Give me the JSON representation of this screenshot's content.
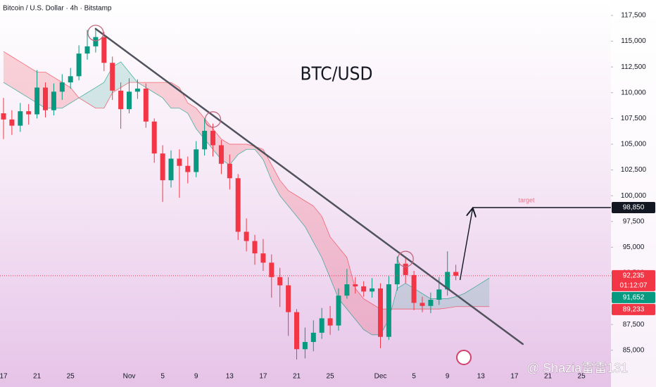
{
  "chart_data": {
    "type": "candlestick",
    "title": "Bitcoin / U.S. Dollar · 4h · Bitstamp",
    "annotation": "BTC/USD",
    "watermark": "@ Shazia雷雷131",
    "categories": [
      "17",
      null,
      null,
      null,
      "21",
      null,
      null,
      null,
      "25",
      null,
      null,
      null,
      null,
      null,
      null,
      "Nov",
      null,
      null,
      null,
      "5",
      null,
      null,
      null,
      "9",
      null,
      null,
      null,
      "13",
      null,
      null,
      null,
      "17",
      null,
      null,
      null,
      "21",
      null,
      null,
      null,
      "25",
      null,
      null,
      null,
      null,
      null,
      "Dec",
      null,
      null,
      null,
      "5",
      null,
      null,
      null,
      "9",
      null,
      null,
      null,
      "13",
      null,
      null,
      null,
      "17",
      null,
      null,
      null,
      "21",
      null,
      null,
      null,
      "25"
    ],
    "open": [
      108000,
      107400,
      106800,
      108200,
      107900,
      110500,
      108300,
      110100,
      111000,
      111600,
      113800,
      114500,
      115400,
      112900,
      110200,
      108400,
      110100,
      110400,
      107200,
      104100,
      101500,
      103600,
      102900,
      102300,
      104500,
      106300,
      104900,
      103100,
      101700,
      96500,
      95600,
      94400,
      93500,
      92100,
      91300,
      88700,
      85100,
      85800,
      86700,
      88100,
      87400,
      90300,
      91400,
      91200,
      90700,
      91000,
      86300,
      91400,
      93400,
      92300,
      89600,
      89300,
      89900,
      90900,
      92600,
      null,
      null,
      null,
      null,
      null,
      null,
      null,
      null,
      null,
      null,
      null,
      null,
      null,
      null,
      null
    ],
    "high": [
      109500,
      108300,
      109000,
      108900,
      112200,
      111000,
      110900,
      111800,
      112400,
      114600,
      116100,
      116300,
      115900,
      113500,
      111000,
      111400,
      111300,
      110900,
      107500,
      104900,
      104400,
      104500,
      103800,
      105300,
      107500,
      107000,
      105400,
      104000,
      102100,
      97800,
      96200,
      95800,
      94300,
      93000,
      92100,
      89000,
      87200,
      87900,
      89100,
      89300,
      91000,
      92900,
      92100,
      91700,
      92000,
      91500,
      92200,
      94100,
      94000,
      92700,
      90200,
      90600,
      92100,
      94600,
      93300,
      null,
      null,
      null,
      null,
      null,
      null,
      null,
      null,
      null,
      null,
      null,
      null,
      null,
      null,
      null
    ],
    "low": [
      105500,
      105900,
      106200,
      106900,
      107500,
      107600,
      107800,
      109300,
      110400,
      111200,
      113200,
      113900,
      112100,
      109300,
      106500,
      108000,
      109400,
      106600,
      103200,
      99400,
      100800,
      99800,
      101200,
      101800,
      103900,
      103800,
      102100,
      100600,
      95700,
      94600,
      93300,
      92700,
      90100,
      89200,
      86400,
      84100,
      84200,
      84900,
      86100,
      86500,
      86900,
      90000,
      90500,
      90200,
      90100,
      85200,
      86000,
      90800,
      91500,
      88900,
      88700,
      88600,
      89400,
      90300,
      91800,
      null,
      null,
      null,
      null,
      null,
      null,
      null,
      null,
      null,
      null,
      null,
      null,
      null,
      null,
      null
    ],
    "close": [
      107400,
      106800,
      108200,
      107900,
      110500,
      108300,
      110100,
      111000,
      111600,
      113800,
      114500,
      115400,
      112900,
      110200,
      108400,
      110100,
      110400,
      107200,
      104100,
      101500,
      103600,
      102900,
      102300,
      104500,
      106300,
      104900,
      103100,
      101700,
      96500,
      95600,
      94400,
      93500,
      92100,
      91300,
      88700,
      85100,
      85800,
      86700,
      88100,
      87400,
      90300,
      91400,
      91200,
      90700,
      91000,
      86300,
      91400,
      93400,
      92300,
      89600,
      89300,
      89900,
      90900,
      92600,
      92235,
      null,
      null,
      null,
      null,
      null,
      null,
      null,
      null,
      null,
      null,
      null,
      null,
      null,
      null,
      null
    ],
    "up_color": "#089981",
    "down_color": "#f23645",
    "cloud": {
      "span_a": [
        111000,
        110500,
        110000,
        109500,
        109000,
        108500,
        108500,
        108500,
        109000,
        109500,
        110000,
        110500,
        111000,
        112500,
        113000,
        112000,
        111000,
        110500,
        110000,
        109500,
        108500,
        108500,
        108000,
        106500,
        105500,
        104500,
        103500,
        103000,
        104000,
        104500,
        104500,
        103500,
        101500,
        100000,
        99000,
        98000,
        97000,
        95500,
        94000,
        92000,
        90000,
        89000,
        88000,
        87000,
        86500,
        86500,
        88000,
        91000,
        91500,
        91000,
        90500,
        90000,
        90000,
        90000,
        90200,
        90500,
        91000,
        91500,
        92000,
        null,
        null,
        null,
        null,
        null,
        null,
        null,
        null,
        null,
        null,
        null
      ],
      "span_b": [
        114000,
        113500,
        113000,
        112500,
        112000,
        112000,
        111500,
        111000,
        110500,
        109500,
        109000,
        108500,
        108500,
        110000,
        110500,
        111000,
        111000,
        111000,
        111000,
        111000,
        111000,
        110500,
        109000,
        108500,
        107500,
        106500,
        105500,
        105000,
        105000,
        105000,
        104800,
        104500,
        103000,
        101500,
        100500,
        100000,
        99500,
        99000,
        98000,
        96000,
        95000,
        94000,
        91000,
        90000,
        89500,
        89000,
        89000,
        89000,
        89000,
        89000,
        89000,
        89000,
        89000,
        89100,
        89233,
        89233,
        89233,
        89233,
        89233,
        null,
        null,
        null,
        null,
        null,
        null,
        null,
        null,
        null,
        null,
        null
      ],
      "bull_color": "#089981",
      "bear_color": "#f23645"
    },
    "trendline": {
      "from": {
        "index": 11,
        "value": 116200
      },
      "to": {
        "index": 62,
        "value": 85600
      },
      "color": "#50535e"
    },
    "highlights": [
      {
        "index": 11,
        "value": 115800
      },
      {
        "index": 25,
        "value": 107400
      },
      {
        "index": 48,
        "value": 93860
      }
    ],
    "target": {
      "text": "target",
      "from_index": 54,
      "to_index": 56,
      "value": 98850,
      "value_label": "98,850"
    },
    "price_labels": [
      {
        "value": 92235,
        "label": "92,235",
        "color": "#f23645",
        "countdown": "01:12:07"
      },
      {
        "value": 91652,
        "label": "91,652",
        "color": "#089981"
      },
      {
        "value": 89233,
        "label": "89,233",
        "color": "#f23645"
      }
    ],
    "ylim": [
      83480,
      119000
    ],
    "yticks": [
      {
        "value": 85000,
        "label": "85,000"
      },
      {
        "value": 87500,
        "label": "87,500"
      },
      {
        "value": 90000,
        "label": "90,000"
      },
      {
        "value": 92500,
        "label": "92,500"
      },
      {
        "value": 95000,
        "label": "95,000"
      },
      {
        "value": 97500,
        "label": "97,500"
      },
      {
        "value": 100000,
        "label": "100,000"
      },
      {
        "value": 102500,
        "label": "102,500"
      },
      {
        "value": 105000,
        "label": "105,000"
      },
      {
        "value": 107500,
        "label": "107,500"
      },
      {
        "value": 110000,
        "label": "110,000"
      },
      {
        "value": 112500,
        "label": "112,500"
      },
      {
        "value": 115000,
        "label": "115,000"
      },
      {
        "value": 117500,
        "label": "117,500"
      }
    ]
  }
}
